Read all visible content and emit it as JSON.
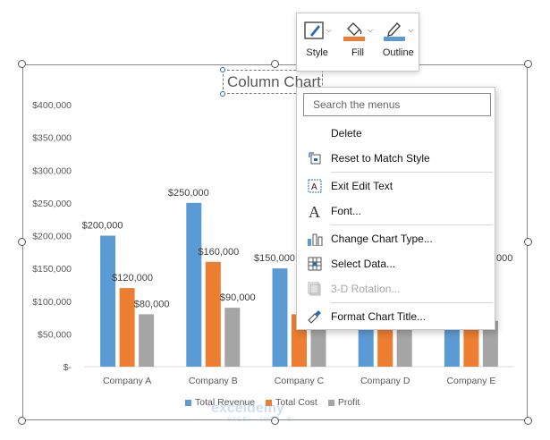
{
  "chart_title": "Column Chart",
  "colors": {
    "revenue": "#5b9bd5",
    "cost": "#ed7d31",
    "profit": "#a5a5a5",
    "accent": "#2b6cb0"
  },
  "chart_data": {
    "type": "bar",
    "title": "Column Chart",
    "categories": [
      "Company A",
      "Company B",
      "Company C",
      "Company D",
      "Company E"
    ],
    "series": [
      {
        "name": "Total Revenue",
        "values": [
          200000,
          250000,
          150000,
          150000,
          150000
        ]
      },
      {
        "name": "Total Cost",
        "values": [
          120000,
          160000,
          80000,
          80000,
          80000
        ]
      },
      {
        "name": "Profit",
        "values": [
          80000,
          90000,
          70000,
          70000,
          70000
        ]
      }
    ],
    "data_labels": [
      [
        "$200,000",
        "$250,000",
        "$150,000",
        "",
        ""
      ],
      [
        "$120,000",
        "$160,000",
        "$80",
        "",
        ""
      ],
      [
        "$80,000",
        "$90,000",
        "",
        "",
        ""
      ]
    ],
    "trailing_label": "000",
    "yticks": [
      0,
      50000,
      100000,
      150000,
      200000,
      250000,
      300000,
      350000,
      400000
    ],
    "ytick_labels": [
      "$-",
      "$50,000",
      "$100,000",
      "$150,000",
      "$200,000",
      "$250,000",
      "$300,000",
      "$350,000",
      "$400,000"
    ],
    "ylim": [
      0,
      400000
    ],
    "legend_position": "bottom"
  },
  "watermark": {
    "brand": "exceldemy",
    "tagline": "EXCEL · DATA · BI"
  },
  "mini_toolbar": {
    "style_label": "Style",
    "fill_label": "Fill",
    "outline_label": "Outline"
  },
  "context_menu": {
    "search_placeholder": "Search the menus",
    "items": [
      {
        "label": "Delete",
        "icon": "none",
        "disabled": false
      },
      {
        "label": "Reset to Match Style",
        "icon": "reset-style-icon",
        "disabled": false
      },
      {
        "label": "Exit Edit Text",
        "icon": "text-box-icon",
        "disabled": false
      },
      {
        "label": "Font...",
        "icon": "font-icon",
        "disabled": false
      },
      {
        "label": "Change Chart Type...",
        "icon": "chart-type-icon",
        "disabled": false
      },
      {
        "label": "Select Data...",
        "icon": "select-data-icon",
        "disabled": false
      },
      {
        "label": "3-D Rotation...",
        "icon": "3d-rotation-icon",
        "disabled": true
      },
      {
        "label": "Format Chart Title...",
        "icon": "format-brush-icon",
        "disabled": false
      }
    ]
  }
}
